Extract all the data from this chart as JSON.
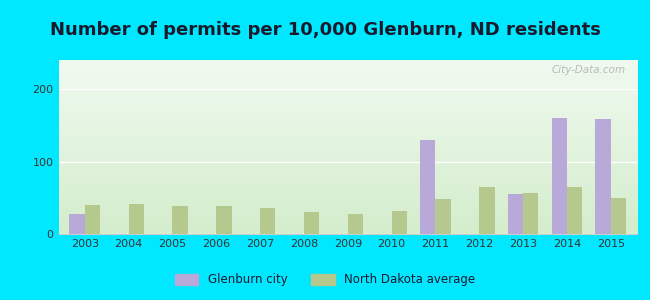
{
  "title": "Number of permits per 10,000 Glenburn, ND residents",
  "years": [
    2003,
    2004,
    2005,
    2006,
    2007,
    2008,
    2009,
    2010,
    2011,
    2012,
    2013,
    2014,
    2015
  ],
  "glenburn": [
    28,
    0,
    0,
    0,
    0,
    0,
    0,
    0,
    130,
    0,
    55,
    160,
    158
  ],
  "nd_avg": [
    40,
    42,
    38,
    38,
    36,
    30,
    28,
    32,
    48,
    65,
    57,
    65,
    50
  ],
  "glenburn_color": "#b8a9d9",
  "nd_avg_color": "#b5c98e",
  "background_top": "#f0faf0",
  "background_bottom": "#d4edcc",
  "bg_outer": "#00e8ff",
  "ylim": [
    0,
    240
  ],
  "yticks": [
    0,
    100,
    200
  ],
  "title_fontsize": 13,
  "title_color": "#1a1a2e",
  "bar_width": 0.35,
  "legend_labels": [
    "Glenburn city",
    "North Dakota average"
  ],
  "watermark": "City-Data.com",
  "tick_color": "#333333",
  "grid_color": "#d0d0d0"
}
